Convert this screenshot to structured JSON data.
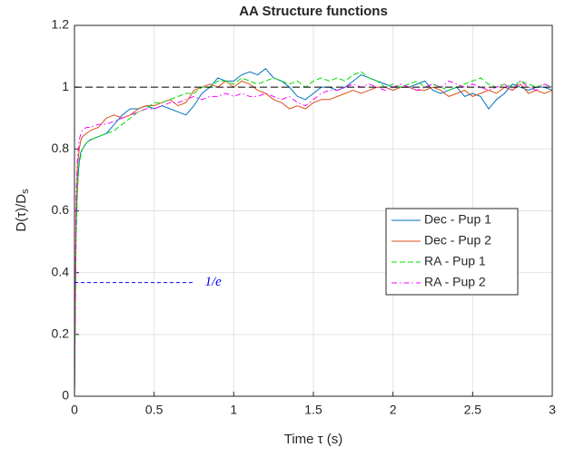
{
  "chart_data": {
    "type": "line",
    "title": "AA Structure functions",
    "xlabel": "Time τ (s)",
    "ylabel": "D(τ)/D",
    "ylabel_subscript": "s",
    "x": [
      0,
      0.01,
      0.02,
      0.03,
      0.04,
      0.05,
      0.075,
      0.1,
      0.15,
      0.2,
      0.25,
      0.3,
      0.35,
      0.4,
      0.45,
      0.5,
      0.55,
      0.6,
      0.65,
      0.7,
      0.75,
      0.8,
      0.85,
      0.9,
      0.95,
      1.0,
      1.05,
      1.1,
      1.15,
      1.2,
      1.25,
      1.3,
      1.35,
      1.4,
      1.45,
      1.5,
      1.55,
      1.6,
      1.65,
      1.7,
      1.75,
      1.8,
      1.85,
      1.9,
      1.95,
      2.0,
      2.05,
      2.1,
      2.15,
      2.2,
      2.25,
      2.3,
      2.35,
      2.4,
      2.45,
      2.5,
      2.55,
      2.6,
      2.65,
      2.7,
      2.75,
      2.8,
      2.85,
      2.9,
      2.95,
      3.0
    ],
    "series": [
      {
        "name": "Dec - Pup 1",
        "color": "#0072bd",
        "linestyle": "solid",
        "values": [
          0,
          0.55,
          0.7,
          0.76,
          0.79,
          0.8,
          0.82,
          0.83,
          0.84,
          0.85,
          0.88,
          0.91,
          0.93,
          0.93,
          0.94,
          0.93,
          0.94,
          0.93,
          0.92,
          0.91,
          0.94,
          0.98,
          1.0,
          1.03,
          1.02,
          1.02,
          1.04,
          1.05,
          1.04,
          1.06,
          1.03,
          1.02,
          1.0,
          0.97,
          0.96,
          0.98,
          1.0,
          1.0,
          0.99,
          1.0,
          1.02,
          1.04,
          1.03,
          1.02,
          1.01,
          1.0,
          1.0,
          1.0,
          1.01,
          1.02,
          0.99,
          0.98,
          0.99,
          1.0,
          0.97,
          0.98,
          0.97,
          0.93,
          0.96,
          0.98,
          1.01,
          1.0,
          0.99,
          1.0,
          1.0,
          0.99
        ]
      },
      {
        "name": "Dec - Pup 2",
        "color": "#d95319",
        "linestyle": "solid",
        "values": [
          0,
          0.6,
          0.75,
          0.8,
          0.83,
          0.84,
          0.85,
          0.86,
          0.87,
          0.9,
          0.91,
          0.9,
          0.91,
          0.93,
          0.94,
          0.94,
          0.95,
          0.96,
          0.94,
          0.95,
          0.99,
          1.0,
          1.01,
          1.0,
          1.02,
          1.0,
          1.02,
          1.01,
          0.99,
          0.98,
          0.96,
          0.95,
          0.93,
          0.94,
          0.93,
          0.95,
          0.96,
          0.96,
          0.97,
          0.98,
          0.99,
          0.98,
          0.99,
          1.0,
          1.0,
          0.99,
          1.0,
          1.0,
          0.99,
          0.99,
          1.0,
          0.99,
          0.97,
          0.98,
          0.99,
          0.97,
          0.98,
          0.99,
          0.98,
          1.0,
          0.99,
          1.01,
          0.98,
          0.99,
          0.98,
          0.99
        ]
      },
      {
        "name": "RA - Pup 1",
        "color": "#00e000",
        "linestyle": "dashed",
        "values": [
          0,
          0.5,
          0.68,
          0.75,
          0.78,
          0.8,
          0.82,
          0.83,
          0.84,
          0.85,
          0.86,
          0.88,
          0.9,
          0.92,
          0.93,
          0.95,
          0.95,
          0.96,
          0.97,
          0.98,
          0.98,
          1.0,
          1.0,
          1.02,
          1.02,
          1.01,
          1.03,
          1.02,
          1.01,
          1.02,
          1.03,
          1.02,
          1.01,
          1.02,
          1.0,
          1.02,
          1.03,
          1.02,
          1.03,
          1.02,
          1.04,
          1.05,
          1.03,
          1.02,
          1.0,
          1.01,
          1.0,
          1.01,
          1.02,
          1.0,
          1.01,
          1.0,
          0.99,
          1.0,
          1.01,
          1.02,
          1.03,
          1.01,
          1.0,
          1.01,
          1.0,
          1.02,
          1.01,
          1.0,
          1.01,
          1.0
        ]
      },
      {
        "name": "RA - Pup 2",
        "color": "#ff00ff",
        "linestyle": "dashdot",
        "values": [
          0,
          0.65,
          0.78,
          0.83,
          0.85,
          0.86,
          0.87,
          0.87,
          0.88,
          0.88,
          0.89,
          0.9,
          0.91,
          0.92,
          0.93,
          0.93,
          0.94,
          0.95,
          0.95,
          0.96,
          0.97,
          0.96,
          0.97,
          0.97,
          0.98,
          0.97,
          0.98,
          0.97,
          0.97,
          0.98,
          0.97,
          0.96,
          0.97,
          0.95,
          0.94,
          0.96,
          0.98,
          0.99,
          0.99,
          1.0,
          1.01,
          1.0,
          1.01,
          1.0,
          0.99,
          1.0,
          1.01,
          1.0,
          0.99,
          1.0,
          1.01,
          1.0,
          1.02,
          1.01,
          1.0,
          1.01,
          1.0,
          0.99,
          1.0,
          1.01,
          0.99,
          1.02,
          1.0,
          0.99,
          1.01,
          1.0
        ]
      }
    ],
    "reference_line": {
      "y": 1,
      "color": "#000000"
    },
    "annotation": {
      "text": "1/e",
      "y": 0.368,
      "x_end": 0.75,
      "color": "#0000ff"
    },
    "xlim": [
      0,
      3
    ],
    "xticks": [
      0,
      0.5,
      1,
      1.5,
      2,
      2.5,
      3
    ],
    "ylim": [
      0,
      1.2
    ],
    "yticks": [
      0,
      0.2,
      0.4,
      0.6,
      0.8,
      1,
      1.2
    ],
    "grid": true,
    "legend": "right"
  }
}
